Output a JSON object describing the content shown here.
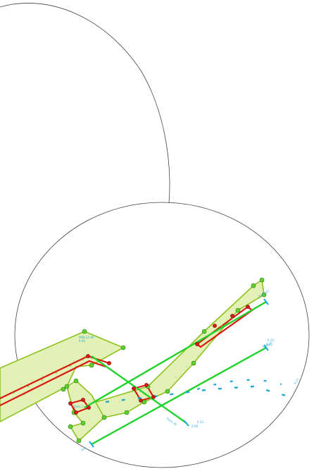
{
  "drawing": {
    "colors": {
      "background": "#ffffff",
      "arc_stroke": "#444444",
      "zone_stroke": "#8cc21e",
      "zone_fill": "#dfeeb0",
      "center_line": "#d81b12",
      "nodes": "#5fd12d",
      "links": "#1fd32a",
      "dimension": "#1ea7d8"
    },
    "labels": [
      "PMS-22.96",
      "0.56",
      "Trans.67",
      "E.12",
      "0.22",
      "Trans.2",
      "E.13",
      "0.58",
      "Trans.36",
      "E.11",
      "Unit",
      "Trans.1"
    ]
  }
}
